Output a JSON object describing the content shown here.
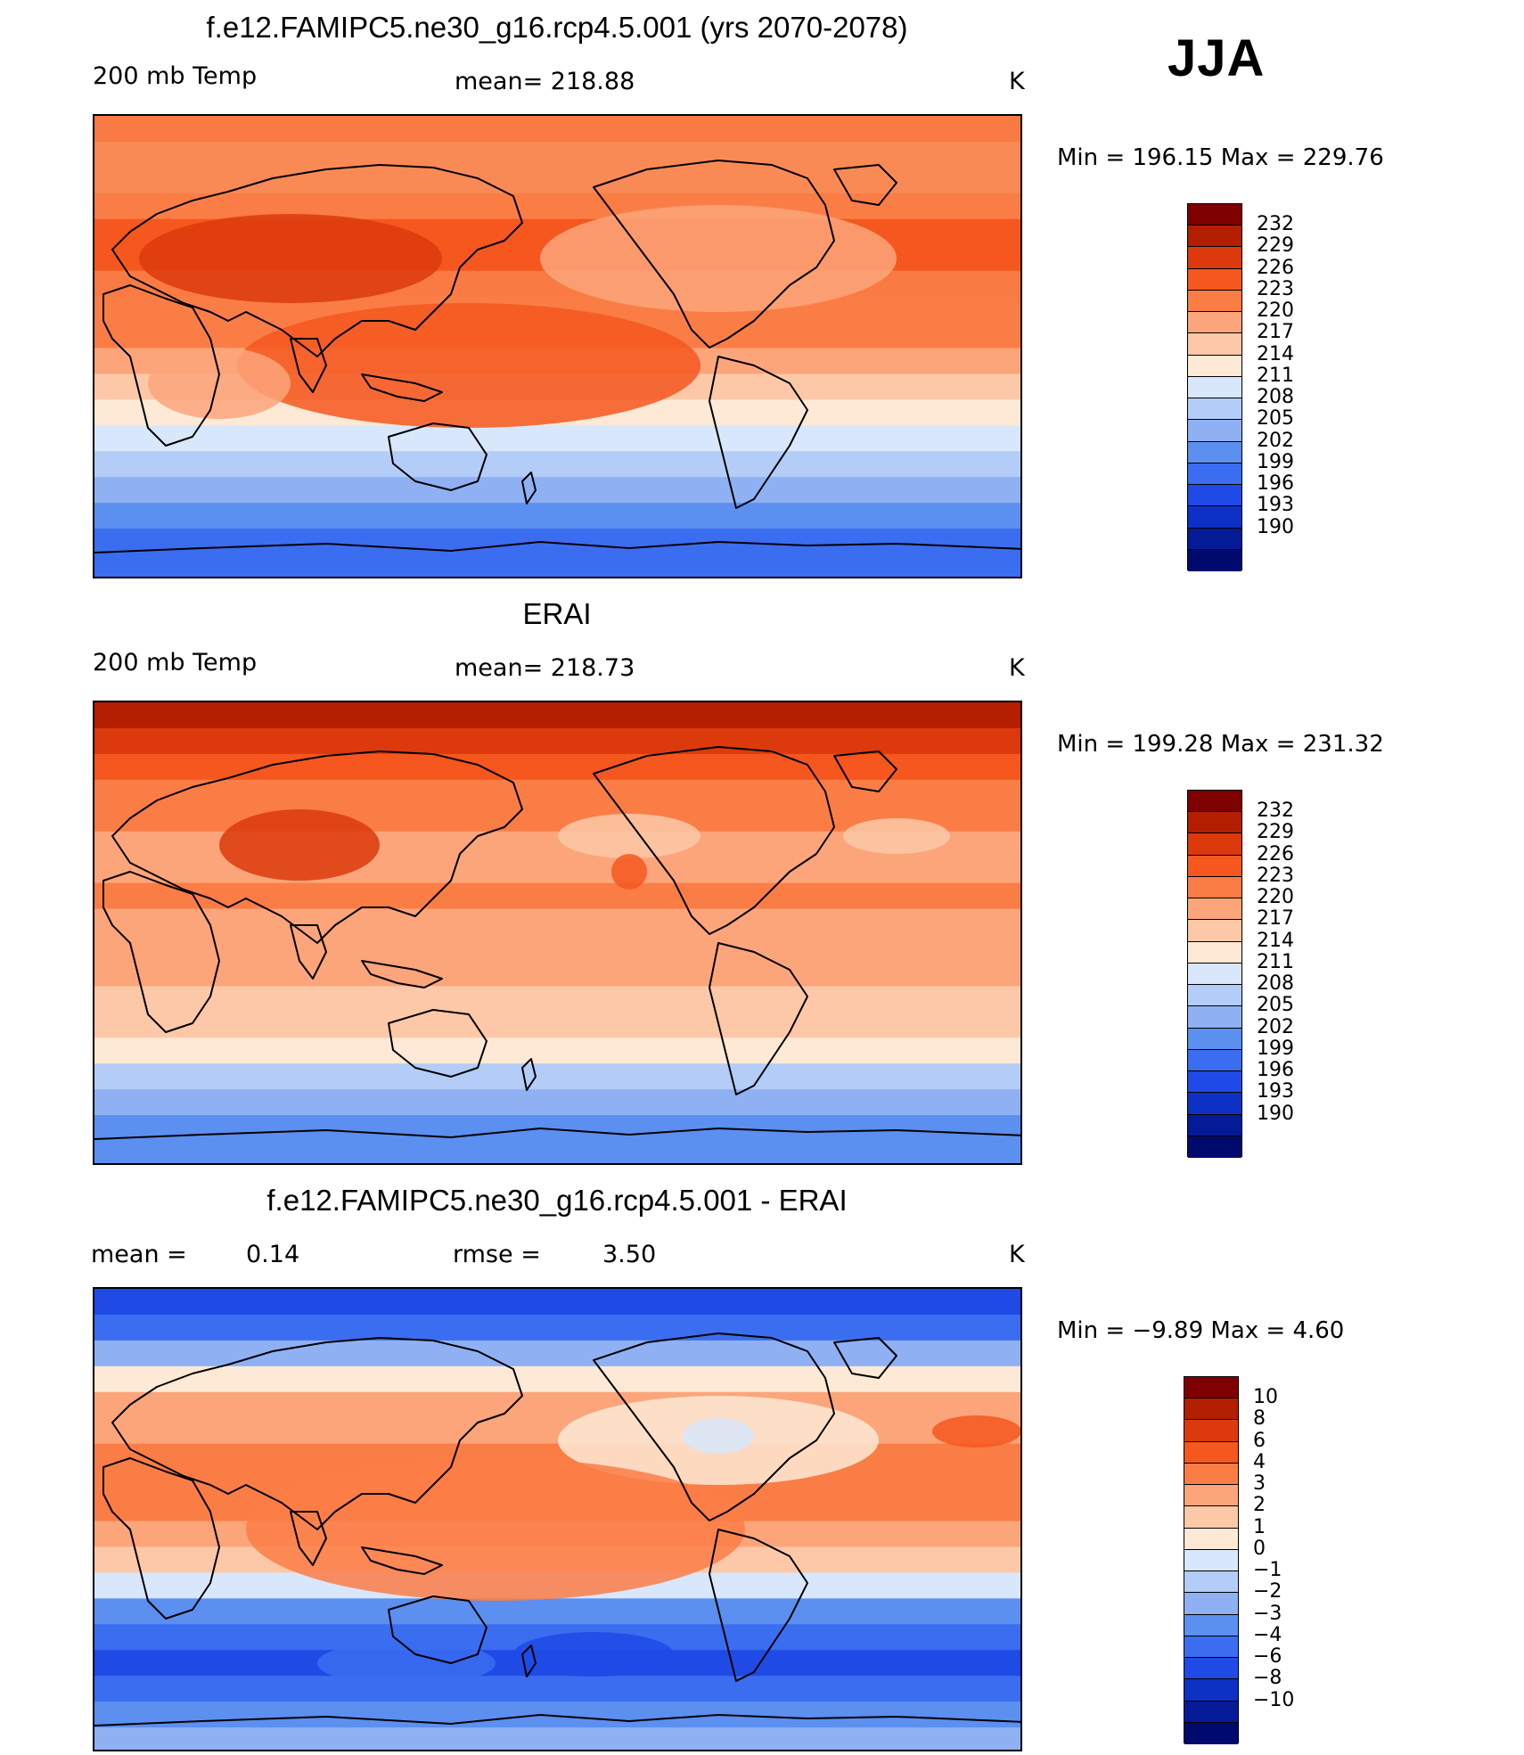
{
  "season": "JJA",
  "panels": [
    {
      "id": "model",
      "title": "f.e12.FAMIPC5.ne30_g16.rcp4.5.001 (yrs 2070-2078)",
      "left_label": "200 mb Temp",
      "center_label": "mean= 218.88",
      "units": "K",
      "minmax": "Min  =  196.15  Max  =  229.76",
      "colorbar": {
        "colors": [
          "#7f0000",
          "#b31e00",
          "#dc3a0c",
          "#f5571e",
          "#fb7d46",
          "#fca57a",
          "#fcc8a8",
          "#fde9d6",
          "#d8e7fb",
          "#b3cdf8",
          "#8fb0f3",
          "#5b8ff0",
          "#3a6df0",
          "#1f4ae6",
          "#0d31c4",
          "#041a96",
          "#000a6e"
        ],
        "labels": [
          "232",
          "229",
          "226",
          "223",
          "220",
          "217",
          "214",
          "211",
          "208",
          "205",
          "202",
          "199",
          "196",
          "193",
          "190"
        ]
      }
    },
    {
      "id": "obs",
      "title": "ERAI",
      "left_label": "200 mb Temp",
      "center_label": "mean= 218.73",
      "units": "K",
      "minmax": "Min  =  199.28  Max  =  231.32",
      "colorbar": {
        "colors": [
          "#7f0000",
          "#b31e00",
          "#dc3a0c",
          "#f5571e",
          "#fb7d46",
          "#fca57a",
          "#fcc8a8",
          "#fde9d6",
          "#d8e7fb",
          "#b3cdf8",
          "#8fb0f3",
          "#5b8ff0",
          "#3a6df0",
          "#1f4ae6",
          "#0d31c4",
          "#041a96",
          "#000a6e"
        ],
        "labels": [
          "232",
          "229",
          "226",
          "223",
          "220",
          "217",
          "214",
          "211",
          "208",
          "205",
          "202",
          "199",
          "196",
          "193",
          "190"
        ]
      }
    },
    {
      "id": "diff",
      "title": "f.e12.FAMIPC5.ne30_g16.rcp4.5.001 - ERAI",
      "left_label": "mean  =",
      "left_value": "0.14",
      "center_label": "rmse  =",
      "center_value": "3.50",
      "units": "K",
      "minmax": "Min  =   −9.89  Max  =     4.60",
      "colorbar": {
        "colors": [
          "#7f0000",
          "#b31e00",
          "#dc3a0c",
          "#f5571e",
          "#fb7d46",
          "#fca57a",
          "#fcc8a8",
          "#fde9d6",
          "#d8e7fb",
          "#b3cdf8",
          "#8fb0f3",
          "#5b8ff0",
          "#3a6df0",
          "#1f4ae6",
          "#0d31c4",
          "#041a96",
          "#000a6e"
        ],
        "labels": [
          "10",
          "8",
          "6",
          "4",
          "3",
          "2",
          "1",
          "0",
          "−1",
          "−2",
          "−3",
          "−4",
          "−6",
          "−8",
          "−10"
        ]
      }
    }
  ],
  "map_fields": {
    "model": [
      "#f97a42",
      "#fa8a55",
      "#fa8a55",
      "#fb7d46",
      "#f5571e",
      "#f5571e",
      "#f97a42",
      "#fb7d46",
      "#fb7d46",
      "#fca57a",
      "#fcc8a8",
      "#fde9d6",
      "#d8e7fb",
      "#b3cdf8",
      "#8fb0f3",
      "#5b8ff0",
      "#3a6df0",
      "#3a6df0"
    ],
    "obs": [
      "#b31e00",
      "#dc3a0c",
      "#f5571e",
      "#fb7d46",
      "#fb7d46",
      "#fca57a",
      "#fca57a",
      "#fb7d46",
      "#fca57a",
      "#fca57a",
      "#fca57a",
      "#fcc8a8",
      "#fcc8a8",
      "#fde9d6",
      "#b3cdf8",
      "#8fb0f3",
      "#5b8ff0",
      "#5b8ff0"
    ],
    "diff": [
      "#1f4ae6",
      "#3a6df0",
      "#8fb0f3",
      "#fde9d6",
      "#fca57a",
      "#fca57a",
      "#fb7d46",
      "#fb7d46",
      "#fb7d46",
      "#fca57a",
      "#fcc8a8",
      "#d8e7fb",
      "#5b8ff0",
      "#3a6df0",
      "#1f4ae6",
      "#3a6df0",
      "#5b8ff0",
      "#8fb0f3"
    ]
  }
}
